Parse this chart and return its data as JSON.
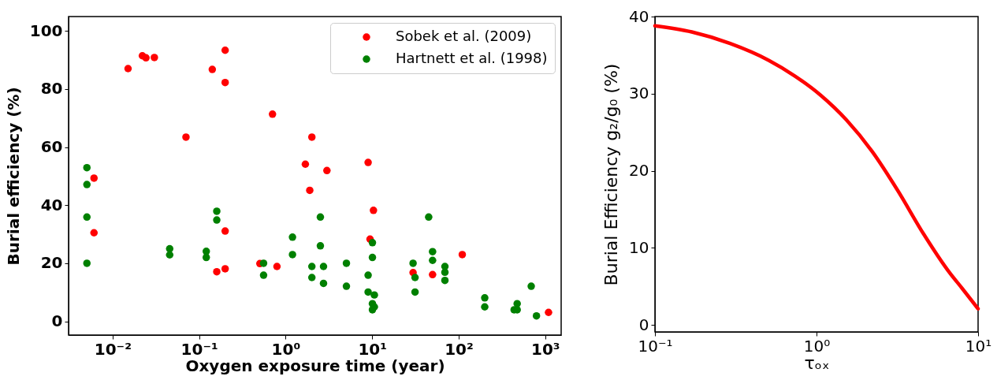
{
  "chart_data": [
    {
      "type": "scatter",
      "xlabel": "Oxygen exposure time (year)",
      "ylabel": "Burial efficiency  (%)",
      "log": "x",
      "xlim": [
        0.0031,
        1528
      ],
      "ylim": [
        -4.7,
        104.9
      ],
      "xticks": [
        {
          "value": 0.01,
          "label": "10⁻²"
        },
        {
          "value": 0.1,
          "label": "10⁻¹"
        },
        {
          "value": 1,
          "label": "10⁰"
        },
        {
          "value": 10,
          "label": "10¹"
        },
        {
          "value": 100,
          "label": "10²"
        },
        {
          "value": 1000,
          "label": "10³"
        }
      ],
      "yticks": [
        0,
        20,
        40,
        60,
        80,
        100
      ],
      "grid": false,
      "legend": "top right",
      "marker": "circle",
      "series": [
        {
          "name": "Sobek et al. (2009)",
          "color": "#ff0000",
          "x": [
            0.0061,
            0.0061,
            0.0151,
            0.0221,
            0.0243,
            0.0304,
            0.0705,
            0.142,
            0.16,
            0.2,
            0.2,
            0.2,
            0.2,
            0.504,
            0.705,
            0.794,
            1.69,
            1.9,
            2.01,
            3.0,
            8.98,
            9.45,
            10.35,
            29.7,
            49.9,
            110,
            1092
          ],
          "values": [
            49.3,
            30.5,
            87.0,
            91.4,
            90.7,
            90.8,
            63.4,
            86.7,
            17.1,
            93.3,
            82.2,
            31.1,
            18.1,
            19.9,
            71.3,
            18.9,
            54.1,
            45.1,
            63.4,
            51.9,
            54.7,
            28.3,
            38.2,
            16.8,
            16.1,
            23.0,
            3.1
          ]
        },
        {
          "name": "Hartnett et al. (1998)",
          "color": "#008000",
          "x": [
            0.00505,
            0.00505,
            0.00505,
            0.00505,
            0.0457,
            0.0457,
            0.121,
            0.121,
            0.16,
            0.16,
            0.556,
            0.556,
            1.2,
            1.2,
            2.01,
            2.01,
            2.52,
            2.52,
            2.74,
            2.74,
            5.04,
            5.04,
            8.98,
            8.98,
            10.07,
            10.07,
            10.6,
            10.07,
            10.6,
            10.07,
            29.7,
            31.3,
            31.3,
            45.0,
            49.9,
            49.9,
            69.3,
            69.3,
            69.3,
            200,
            200,
            437,
            474,
            474,
            689,
            792
          ],
          "values": [
            52.9,
            47.1,
            35.9,
            20.0,
            25.0,
            22.9,
            24.1,
            22.0,
            37.9,
            34.9,
            20.0,
            15.9,
            29.0,
            23.0,
            18.9,
            15.1,
            35.9,
            26.0,
            18.9,
            13.1,
            20.0,
            12.1,
            15.9,
            10.1,
            27.1,
            22.0,
            9.1,
            6.1,
            5.0,
            4.0,
            20.0,
            15.1,
            10.1,
            35.9,
            24.0,
            21.0,
            18.9,
            16.9,
            14.1,
            8.1,
            5.0,
            4.0,
            6.1,
            4.0,
            12.1,
            1.9
          ]
        }
      ]
    },
    {
      "type": "line",
      "xlabel": "τₒₓ",
      "ylabel": "Burial Efficiency g₂/g₀  (%)",
      "log": "x",
      "xlim": [
        0.1,
        10
      ],
      "ylim": [
        -0.9,
        40
      ],
      "xticks": [
        {
          "value": 0.1,
          "label": "10⁻¹"
        },
        {
          "value": 1,
          "label": "10⁰"
        },
        {
          "value": 10,
          "label": "10¹"
        }
      ],
      "yticks": [
        0,
        10,
        20,
        30,
        40
      ],
      "grid": false,
      "legend": false,
      "line_style": "solid",
      "series": [
        {
          "color": "#ff0000",
          "x": [
            0.1,
            0.169,
            0.292,
            0.508,
            0.733,
            1.06,
            1.53,
            2.21,
            3.19,
            4.6,
            6.65,
            8.0,
            10
          ],
          "values": [
            38.8,
            38.0,
            36.5,
            34.3,
            32.3,
            29.8,
            26.6,
            22.5,
            17.4,
            11.8,
            6.8,
            4.7,
            2.1
          ]
        }
      ]
    }
  ]
}
